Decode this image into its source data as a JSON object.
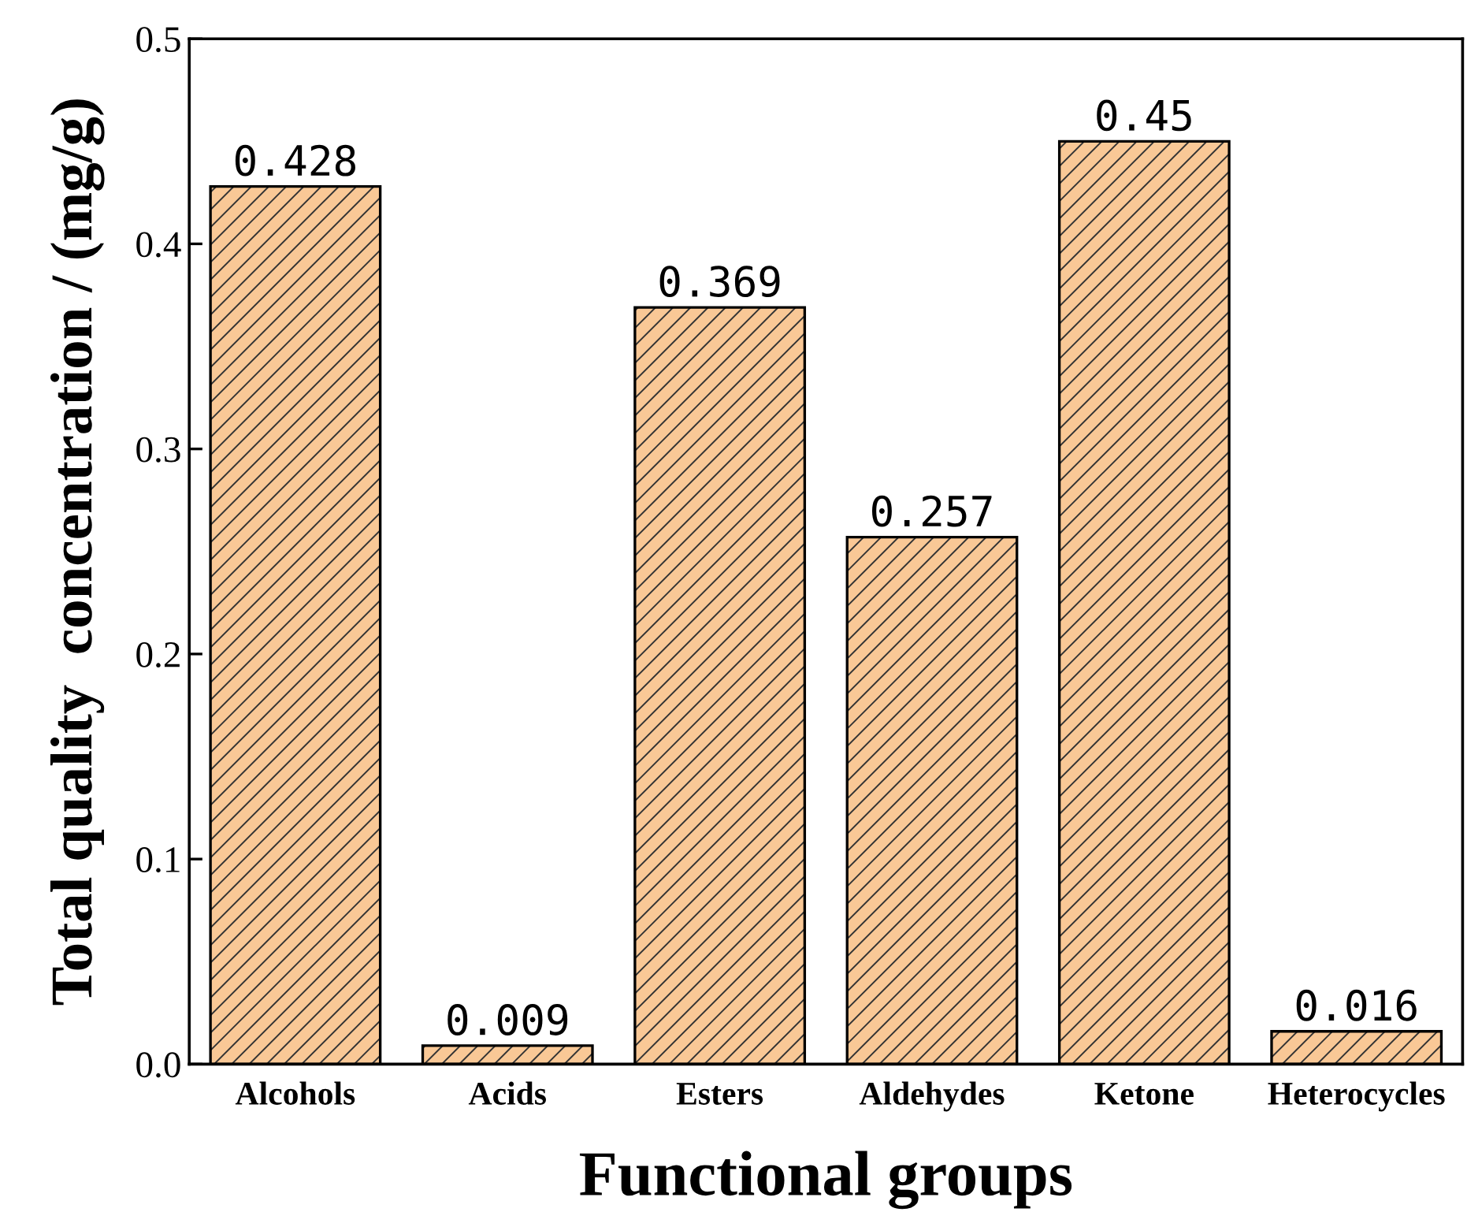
{
  "chart_data": {
    "type": "bar",
    "xlabel": "Functional groups",
    "ylabel": "Total quality  concentration / (mg/g)",
    "categories": [
      "Alcohols",
      "Acids",
      "Esters",
      "Aldehydes",
      "Ketone",
      "Heterocycles"
    ],
    "values": [
      0.428,
      0.009,
      0.369,
      0.257,
      0.45,
      0.016
    ],
    "color": "#f9c896",
    "ylim": [
      0,
      0.5
    ],
    "yticks": [
      {
        "value": 0,
        "label": "0.0"
      },
      0.1,
      0.2,
      0.3,
      0.4,
      0.5
    ],
    "data_labels": true,
    "grid": false,
    "legend": false
  }
}
